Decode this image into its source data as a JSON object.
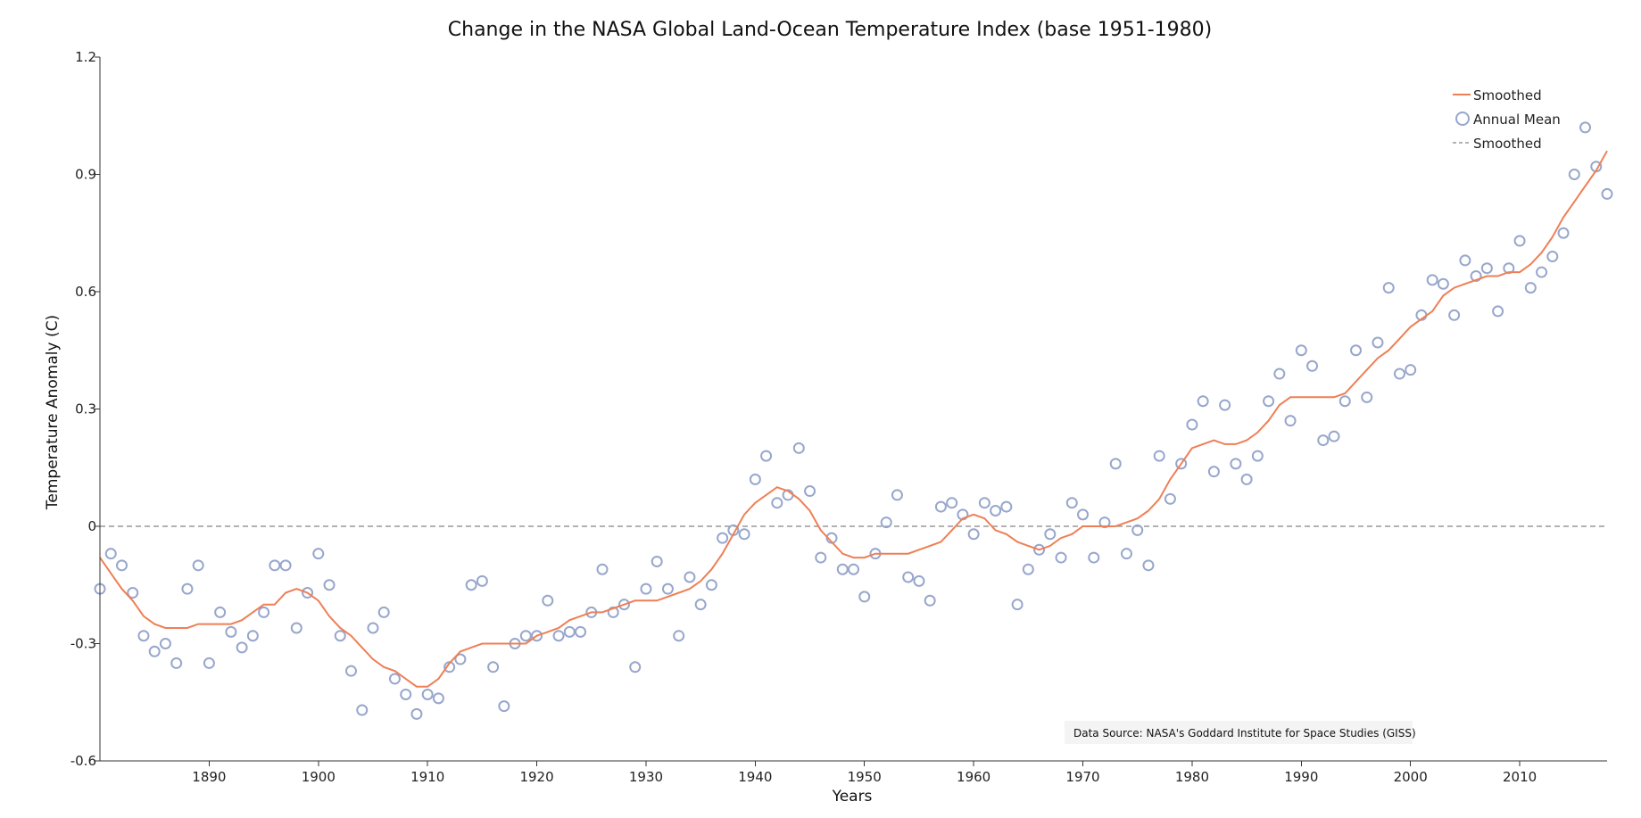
{
  "chart_data": {
    "type": "line",
    "title": "Change in the NASA Global Land-Ocean Temperature Index (base 1951-1980)",
    "xlabel": "Years",
    "ylabel": "Temperature Anomaly (C)",
    "xlim": [
      1880,
      2018
    ],
    "ylim": [
      -0.6,
      1.2
    ],
    "x_ticks": [
      1890,
      1900,
      1910,
      1920,
      1930,
      1940,
      1950,
      1960,
      1970,
      1980,
      1990,
      2000,
      2010
    ],
    "y_ticks": [
      -0.6,
      -0.3,
      0,
      0.3,
      0.6,
      0.9,
      1.2
    ],
    "y_tick_labels": [
      "-0.6",
      "-0.3",
      "0",
      "0.3",
      "0.6",
      "0.9",
      "1.2"
    ],
    "grid": false,
    "legend_placement": "top-right",
    "legend": [
      {
        "label": "Smoothed",
        "marker": "line",
        "color": "#ee7f55"
      },
      {
        "label": "Annual Mean",
        "marker": "circle",
        "color": "#97a6cc"
      },
      {
        "label": "Smoothed",
        "marker": "dashed-line",
        "color": "#999999"
      }
    ],
    "annotation": "Data Source: NASA's Goddard Institute for Space Studies (GISS)",
    "colors": {
      "smoothed": "#ee7f55",
      "annual_mean": "#97a6cc",
      "zero_line": "#999999",
      "axis": "#333333"
    },
    "x": [
      1880,
      1881,
      1882,
      1883,
      1884,
      1885,
      1886,
      1887,
      1888,
      1889,
      1890,
      1891,
      1892,
      1893,
      1894,
      1895,
      1896,
      1897,
      1898,
      1899,
      1900,
      1901,
      1902,
      1903,
      1904,
      1905,
      1906,
      1907,
      1908,
      1909,
      1910,
      1911,
      1912,
      1913,
      1914,
      1915,
      1916,
      1917,
      1918,
      1919,
      1920,
      1921,
      1922,
      1923,
      1924,
      1925,
      1926,
      1927,
      1928,
      1929,
      1930,
      1931,
      1932,
      1933,
      1934,
      1935,
      1936,
      1937,
      1938,
      1939,
      1940,
      1941,
      1942,
      1943,
      1944,
      1945,
      1946,
      1947,
      1948,
      1949,
      1950,
      1951,
      1952,
      1953,
      1954,
      1955,
      1956,
      1957,
      1958,
      1959,
      1960,
      1961,
      1962,
      1963,
      1964,
      1965,
      1966,
      1967,
      1968,
      1969,
      1970,
      1971,
      1972,
      1973,
      1974,
      1975,
      1976,
      1977,
      1978,
      1979,
      1980,
      1981,
      1982,
      1983,
      1984,
      1985,
      1986,
      1987,
      1988,
      1989,
      1990,
      1991,
      1992,
      1993,
      1994,
      1995,
      1996,
      1997,
      1998,
      1999,
      2000,
      2001,
      2002,
      2003,
      2004,
      2005,
      2006,
      2007,
      2008,
      2009,
      2010,
      2011,
      2012,
      2013,
      2014,
      2015,
      2016,
      2017,
      2018
    ],
    "series": [
      {
        "name": "Annual Mean",
        "kind": "scatter",
        "values": [
          -0.16,
          -0.07,
          -0.1,
          -0.17,
          -0.28,
          -0.32,
          -0.3,
          -0.35,
          -0.16,
          -0.1,
          -0.35,
          -0.22,
          -0.27,
          -0.31,
          -0.28,
          -0.22,
          -0.1,
          -0.1,
          -0.26,
          -0.17,
          -0.07,
          -0.15,
          -0.28,
          -0.37,
          -0.47,
          -0.26,
          -0.22,
          -0.39,
          -0.43,
          -0.48,
          -0.43,
          -0.44,
          -0.36,
          -0.34,
          -0.15,
          -0.14,
          -0.36,
          -0.46,
          -0.3,
          -0.28,
          -0.28,
          -0.19,
          -0.28,
          -0.27,
          -0.27,
          -0.22,
          -0.11,
          -0.22,
          -0.2,
          -0.36,
          -0.16,
          -0.09,
          -0.16,
          -0.28,
          -0.13,
          -0.2,
          -0.15,
          -0.03,
          -0.01,
          -0.02,
          0.12,
          0.18,
          0.06,
          0.08,
          0.2,
          0.09,
          -0.08,
          -0.03,
          -0.11,
          -0.11,
          -0.18,
          -0.07,
          0.01,
          0.08,
          -0.13,
          -0.14,
          -0.19,
          0.05,
          0.06,
          0.03,
          -0.02,
          0.06,
          0.04,
          0.05,
          -0.2,
          -0.11,
          -0.06,
          -0.02,
          -0.08,
          0.06,
          0.03,
          -0.08,
          0.01,
          0.16,
          -0.07,
          -0.01,
          -0.1,
          0.18,
          0.07,
          0.16,
          0.26,
          0.32,
          0.14,
          0.31,
          0.16,
          0.12,
          0.18,
          0.32,
          0.39,
          0.27,
          0.45,
          0.41,
          0.22,
          0.23,
          0.32,
          0.45,
          0.33,
          0.47,
          0.61,
          0.39,
          0.4,
          0.54,
          0.63,
          0.62,
          0.54,
          0.68,
          0.64,
          0.66,
          0.55,
          0.66,
          0.73,
          0.61,
          0.65,
          0.69,
          0.75,
          0.9,
          1.02,
          0.92,
          0.85
        ]
      },
      {
        "name": "Smoothed",
        "kind": "line",
        "values": [
          -0.08,
          -0.12,
          -0.16,
          -0.19,
          -0.23,
          -0.25,
          -0.26,
          -0.26,
          -0.26,
          -0.25,
          -0.25,
          -0.25,
          -0.25,
          -0.24,
          -0.22,
          -0.2,
          -0.2,
          -0.17,
          -0.16,
          -0.17,
          -0.19,
          -0.23,
          -0.26,
          -0.28,
          -0.31,
          -0.34,
          -0.36,
          -0.37,
          -0.39,
          -0.41,
          -0.41,
          -0.39,
          -0.35,
          -0.32,
          -0.31,
          -0.3,
          -0.3,
          -0.3,
          -0.3,
          -0.3,
          -0.28,
          -0.27,
          -0.26,
          -0.24,
          -0.23,
          -0.22,
          -0.22,
          -0.21,
          -0.2,
          -0.19,
          -0.19,
          -0.19,
          -0.18,
          -0.17,
          -0.16,
          -0.14,
          -0.11,
          -0.07,
          -0.02,
          0.03,
          0.06,
          0.08,
          0.1,
          0.09,
          0.07,
          0.04,
          -0.01,
          -0.04,
          -0.07,
          -0.08,
          -0.08,
          -0.07,
          -0.07,
          -0.07,
          -0.07,
          -0.06,
          -0.05,
          -0.04,
          -0.01,
          0.02,
          0.03,
          0.02,
          -0.01,
          -0.02,
          -0.04,
          -0.05,
          -0.06,
          -0.05,
          -0.03,
          -0.02,
          0.0,
          0.0,
          0.0,
          0.0,
          0.01,
          0.02,
          0.04,
          0.07,
          0.12,
          0.16,
          0.2,
          0.21,
          0.22,
          0.21,
          0.21,
          0.22,
          0.24,
          0.27,
          0.31,
          0.33,
          0.33,
          0.33,
          0.33,
          0.33,
          0.34,
          0.37,
          0.4,
          0.43,
          0.45,
          0.48,
          0.51,
          0.53,
          0.55,
          0.59,
          0.61,
          0.62,
          0.63,
          0.64,
          0.64,
          0.65,
          0.65,
          0.67,
          0.7,
          0.74,
          0.79,
          0.83,
          0.87,
          0.91,
          0.96
        ]
      }
    ]
  }
}
